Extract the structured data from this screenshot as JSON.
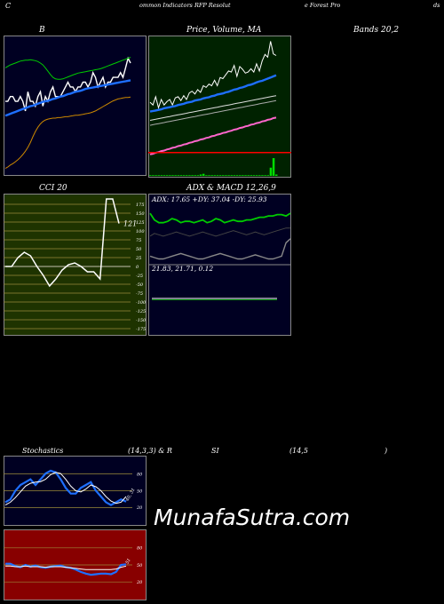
{
  "header": {
    "left": "C",
    "center": "ommon  Indicators RFP Resolut",
    "right": "e  Forest Pro",
    "far_right": "ds"
  },
  "colors": {
    "navy_bg": "#000022",
    "green_bg": "#002200",
    "olive_bg": "#1e3300",
    "red_bg": "#880000",
    "blue_line": "#1e6fff",
    "green_line": "#00cc00",
    "orange_line": "#cc8800",
    "white_line": "#ffffff",
    "pink_line": "#ff66cc"
  },
  "chart_data": [
    {
      "id": "bollinger",
      "type": "line",
      "title": "B",
      "series": [
        {
          "role": "price",
          "color": "#ffffff",
          "values": [
            47,
            47,
            48,
            48,
            47,
            47,
            48,
            47,
            45,
            49,
            47,
            47,
            46,
            48,
            49,
            46,
            48,
            47,
            49,
            50,
            48,
            48,
            48,
            49,
            50,
            51,
            50,
            50,
            49,
            50,
            50,
            51,
            51,
            50,
            51,
            53,
            52,
            50,
            51,
            52,
            50,
            51,
            51,
            52,
            52,
            52,
            53,
            52,
            54,
            56,
            55
          ]
        },
        {
          "role": "middle",
          "color": "#1e6fff",
          "values": [
            44,
            44.2,
            44.4,
            44.6,
            44.8,
            45,
            45.2,
            45.4,
            45.6,
            45.8,
            46,
            46.1,
            46.3,
            46.5,
            46.7,
            46.9,
            47,
            47.1,
            47.3,
            47.5,
            47.6,
            47.8,
            48,
            48.1,
            48.3,
            48.5,
            48.6,
            48.8,
            49,
            49.1,
            49.2,
            49.4,
            49.6,
            49.7,
            49.8,
            49.9,
            50,
            50.1,
            50.2,
            50.3,
            50.4,
            50.5,
            50.6,
            50.7,
            50.8,
            50.9,
            51,
            51.1,
            51.2,
            51.3,
            51.4
          ]
        },
        {
          "role": "upper",
          "color": "#00cc00",
          "values": [
            54,
            54.3,
            54.6,
            54.8,
            55,
            55.2,
            55.4,
            55.5,
            55.6,
            55.6,
            55.7,
            55.6,
            55.5,
            55.3,
            55,
            54.6,
            54,
            53.3,
            52.6,
            52,
            51.7,
            51.6,
            51.6,
            51.7,
            51.9,
            52.1,
            52.3,
            52.5,
            52.7,
            52.9,
            53,
            53.1,
            53.2,
            53.3,
            53.4,
            53.5,
            53.6,
            53.7,
            53.8,
            54,
            54.2,
            54.4,
            54.6,
            54.8,
            55,
            55.2,
            55.4,
            55.6,
            55.8,
            56,
            56.2
          ]
        },
        {
          "role": "lower",
          "color": "#cc8800",
          "values": [
            33,
            33.3,
            33.7,
            34,
            34.4,
            34.8,
            35.3,
            35.9,
            36.6,
            37.4,
            38.4,
            39.6,
            40.7,
            41.6,
            42.3,
            42.8,
            43.1,
            43.3,
            43.4,
            43.5,
            43.5,
            43.6,
            43.6,
            43.7,
            43.8,
            43.8,
            43.9,
            44,
            44.1,
            44.1,
            44.2,
            44.3,
            44.4,
            44.5,
            44.6,
            44.8,
            45,
            45.3,
            45.6,
            45.9,
            46.2,
            46.5,
            46.8,
            47.1,
            47.3,
            47.5,
            47.6,
            47.7,
            47.8,
            47.8,
            47.9
          ]
        }
      ]
    },
    {
      "id": "price_ma",
      "type": "line",
      "title": "Price,  Volume, MA",
      "series": [
        {
          "role": "price",
          "color": "#ffffff",
          "values": [
            50.5,
            50,
            51.5,
            49.5,
            51,
            50,
            50.6,
            51,
            50,
            51.3,
            51.5,
            50.8,
            51.7,
            51,
            52.2,
            52.5,
            52,
            52.8,
            52.3,
            53.5,
            53.2,
            53.8,
            53.5,
            54.5,
            53.5,
            55,
            54.8,
            55.5,
            56.2,
            56,
            57.2,
            55.2,
            57,
            56.5,
            55.8,
            56,
            56.6,
            56,
            57.5,
            56.2,
            58,
            59.2,
            58.7,
            61.6,
            59.3,
            59
          ]
        },
        {
          "role": "ma_fast",
          "color": "#1e6fff",
          "values": [
            48.8,
            48.9,
            49,
            49.1,
            49.2,
            49.4,
            49.5,
            49.6,
            49.7,
            49.8,
            50,
            50.1,
            50.2,
            50.4,
            50.5,
            50.6,
            50.8,
            50.9,
            51,
            51.2,
            51.3,
            51.4,
            51.6,
            51.7,
            51.9,
            52,
            52.1,
            52.3,
            52.4,
            52.6,
            52.8,
            52.9,
            53.1,
            53.2,
            53.4,
            53.6,
            53.7,
            53.9,
            54.1,
            54.3,
            54.4,
            54.6,
            54.8,
            55,
            55.2,
            55.4
          ]
        },
        {
          "role": "ma_mid",
          "color": "#dddddd",
          "values": [
            47.2,
            47.3,
            47.4,
            47.5,
            47.6,
            47.7,
            47.8,
            47.9,
            48,
            48.1,
            48.2,
            48.3,
            48.4,
            48.5,
            48.6,
            48.7,
            48.8,
            48.9,
            49,
            49.1,
            49.2,
            49.3,
            49.4,
            49.5,
            49.6,
            49.7,
            49.8,
            49.9,
            50,
            50.1,
            50.2,
            50.3,
            50.4,
            50.5,
            50.6,
            50.7,
            50.8,
            50.9,
            51,
            51.1,
            51.2,
            51.3,
            51.4,
            51.5,
            51.6,
            51.7
          ]
        },
        {
          "role": "ma_slow",
          "color": "#aaaaaa",
          "values": [
            46.3,
            46.4,
            46.5,
            46.6,
            46.7,
            46.8,
            46.9,
            47,
            47.1,
            47.2,
            47.3,
            47.4,
            47.5,
            47.6,
            47.7,
            47.8,
            47.9,
            48,
            48.1,
            48.2,
            48.3,
            48.4,
            48.5,
            48.6,
            48.7,
            48.8,
            48.9,
            49,
            49.1,
            49.2,
            49.3,
            49.4,
            49.5,
            49.6,
            49.7,
            49.8,
            49.9,
            50,
            50.1,
            50.2,
            50.3,
            50.4,
            50.5,
            50.6,
            50.7,
            50.8
          ]
        },
        {
          "role": "ma_long",
          "color": "#ff66cc",
          "values": [
            41,
            41.1,
            41.3,
            41.4,
            41.6,
            41.7,
            41.9,
            42,
            42.2,
            42.3,
            42.5,
            42.6,
            42.8,
            42.9,
            43.1,
            43.2,
            43.4,
            43.5,
            43.7,
            43.8,
            44,
            44.1,
            44.3,
            44.4,
            44.6,
            44.7,
            44.9,
            45,
            45.2,
            45.3,
            45.5,
            45.6,
            45.8,
            45.9,
            46.1,
            46.2,
            46.4,
            46.5,
            46.7,
            46.8,
            47,
            47.1,
            47.3,
            47.4,
            47.6,
            47.7
          ]
        }
      ],
      "volume": [
        1,
        1,
        1,
        1,
        1,
        1,
        1,
        1,
        1,
        1,
        1,
        1,
        1,
        1,
        1,
        1,
        1,
        1,
        2,
        3,
        1,
        1,
        1,
        1,
        1,
        1,
        1,
        1,
        1,
        1,
        1,
        1,
        1,
        1,
        1,
        1,
        1,
        1,
        1,
        1,
        1,
        1,
        1,
        12,
        26,
        2
      ]
    },
    {
      "id": "bands_label",
      "type": "line",
      "title": "Bands 20,2"
    },
    {
      "id": "cci",
      "type": "line",
      "title": "CCI 20",
      "value_label": "121",
      "ylim": [
        -175,
        175
      ],
      "ticks": [
        175,
        150,
        125,
        100,
        75,
        50,
        25,
        0,
        -25,
        -50,
        -75,
        -100,
        -125,
        -150,
        -175
      ],
      "tick_labels": [
        "175",
        "150",
        "125",
        "100",
        "75",
        "50",
        "25",
        "0",
        "-25",
        "-50",
        "-75",
        "-100",
        "-125",
        "-150",
        "-175"
      ],
      "values": [
        0,
        0,
        25,
        40,
        30,
        0,
        -25,
        -55,
        -35,
        -10,
        5,
        10,
        0,
        -15,
        -15,
        -35,
        190,
        190,
        121
      ]
    },
    {
      "id": "adx",
      "type": "line",
      "title": "ADX  & MACD 12,26,9",
      "label": "ADX: 17.65  +DY: 37.04  -DY: 25.93",
      "series": [
        {
          "role": "plus_di",
          "color": "#00cc00",
          "values": [
            37,
            32,
            30,
            30,
            31,
            33,
            32,
            30,
            31,
            31,
            30,
            31,
            32,
            30,
            31,
            33,
            32,
            30,
            31,
            32,
            31,
            31,
            32,
            32,
            33,
            34,
            34,
            35,
            35,
            36,
            36,
            35,
            37
          ]
        },
        {
          "role": "minus_di",
          "color": "#444444",
          "values": [
            20,
            22,
            21,
            20,
            21,
            22,
            23,
            22,
            21,
            20,
            21,
            22,
            23,
            22,
            21,
            20,
            21,
            22,
            23,
            24,
            23,
            22,
            21,
            22,
            23,
            22,
            21,
            22,
            23,
            24,
            25,
            26,
            25.93
          ]
        },
        {
          "role": "adx_line",
          "color": "#888888",
          "values": [
            5,
            4,
            3,
            3,
            4,
            5,
            6,
            7,
            6,
            5,
            4,
            3,
            3,
            4,
            5,
            6,
            7,
            6,
            5,
            4,
            3,
            3,
            4,
            5,
            6,
            5,
            4,
            3,
            3,
            4,
            5,
            15,
            18
          ]
        }
      ],
      "macd_label": "21.83,  21.71,  0.12"
    },
    {
      "id": "stochastics",
      "type": "line",
      "title": "Stochastics",
      "params": "(14,3,3) & R",
      "ylim": [
        0,
        100
      ],
      "ticks": [
        80,
        50,
        20
      ],
      "tick_labels": [
        "80",
        "50",
        "20"
      ],
      "value_label": "40, 31",
      "series": [
        {
          "role": "k",
          "color": "#1e6fff",
          "values": [
            30,
            35,
            50,
            60,
            65,
            70,
            60,
            70,
            80,
            85,
            82,
            70,
            55,
            45,
            45,
            55,
            60,
            65,
            50,
            40,
            30,
            25,
            30,
            35,
            31
          ]
        },
        {
          "role": "d",
          "color": "#ffffff",
          "values": [
            25,
            30,
            38,
            48,
            58,
            63,
            65,
            66,
            70,
            78,
            82,
            80,
            70,
            58,
            50,
            48,
            53,
            60,
            57,
            50,
            40,
            32,
            28,
            30,
            40
          ]
        }
      ]
    },
    {
      "id": "rsi",
      "type": "line",
      "title": "SI",
      "params": "(14,5",
      "close_paren": ")",
      "ylim": [
        0,
        100
      ],
      "ticks": [
        80,
        50,
        20
      ],
      "tick_labels": [
        "80",
        "50",
        "20"
      ],
      "value_label": "51",
      "series": [
        {
          "role": "rsi",
          "color": "#1e6fff",
          "values": [
            52,
            52,
            48,
            46,
            50,
            47,
            49,
            46,
            45,
            47,
            48,
            49,
            46,
            45,
            42,
            38,
            35,
            33,
            34,
            35,
            35,
            34,
            38,
            50,
            51
          ]
        },
        {
          "role": "signal",
          "color": "#ffffff",
          "values": [
            48,
            48,
            47,
            47,
            48,
            47,
            47,
            47,
            46,
            47,
            47,
            47,
            46,
            45,
            44,
            43,
            42,
            42,
            42,
            42,
            42,
            42,
            43,
            46,
            48
          ]
        }
      ]
    }
  ],
  "watermark": "MunafaSutra.com"
}
